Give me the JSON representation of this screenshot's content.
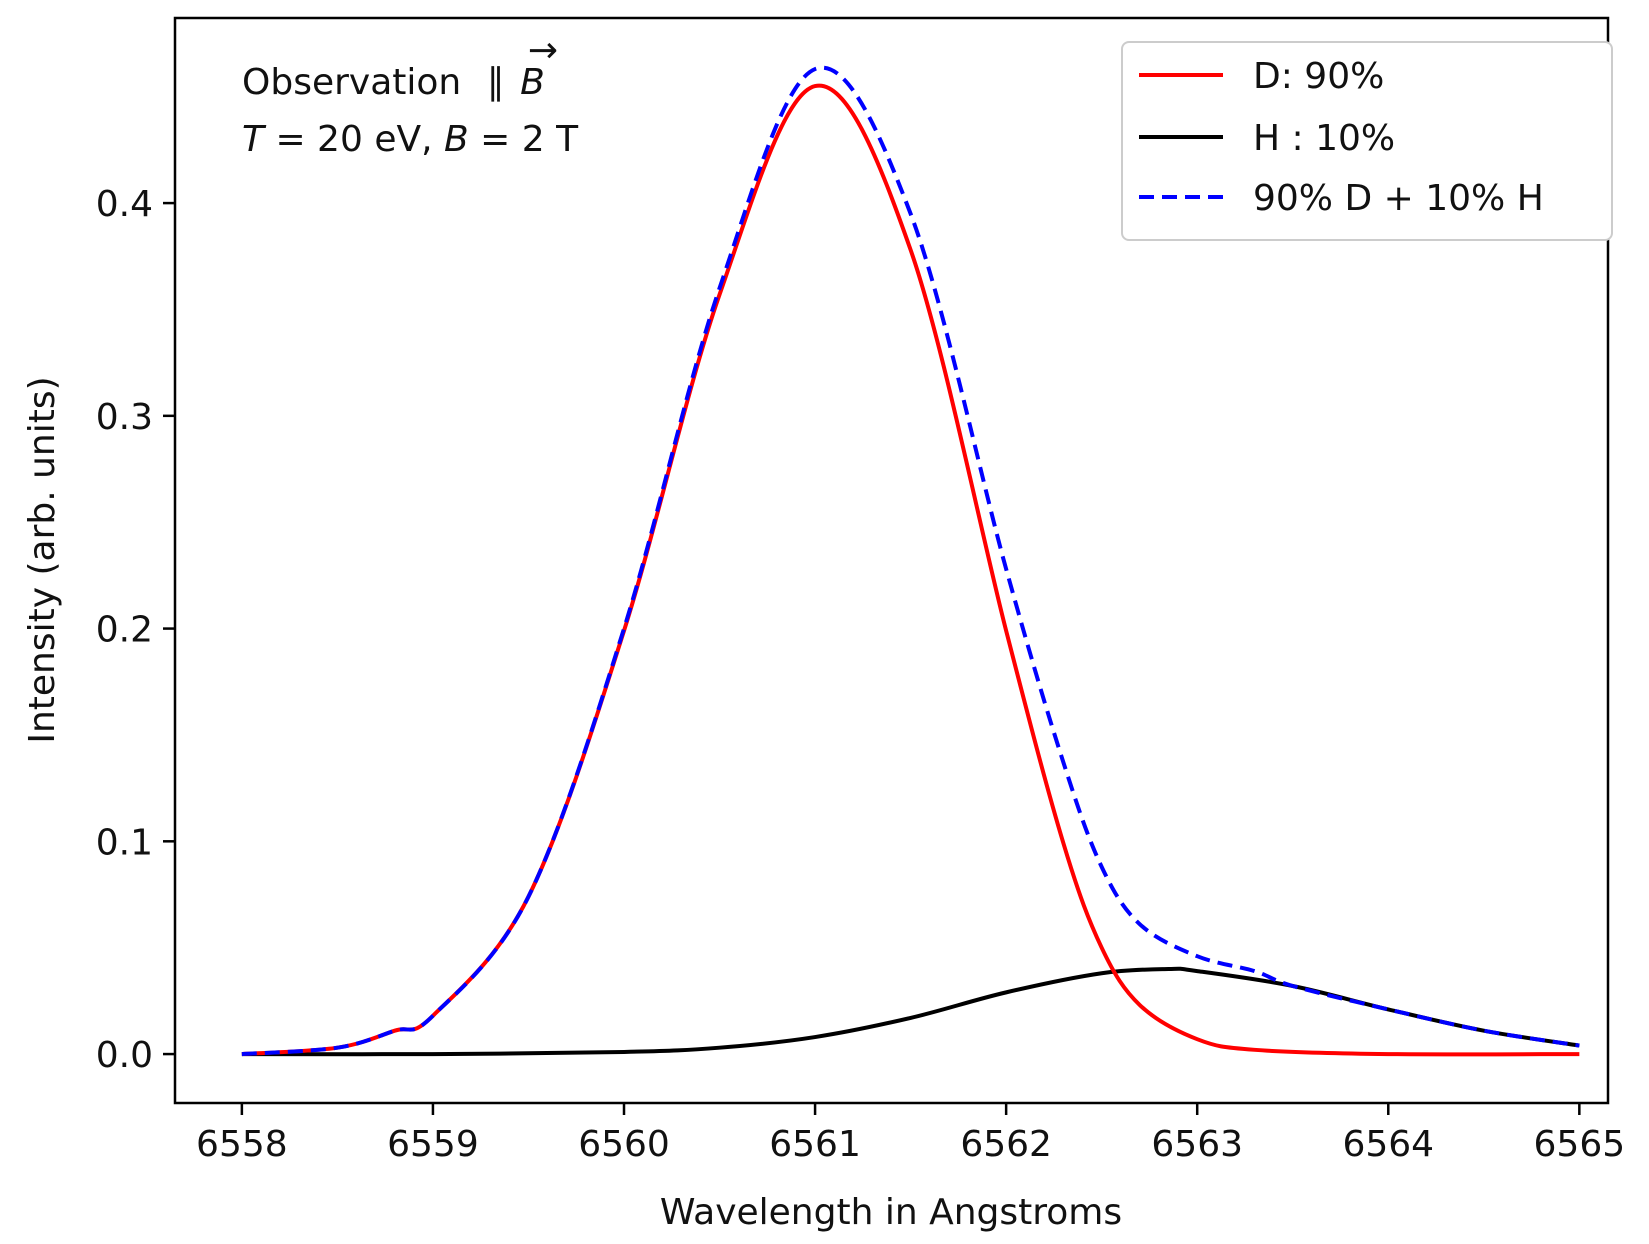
{
  "chart_data": {
    "type": "line",
    "xlabel": "Wavelength in Angstroms",
    "ylabel": "Intensity (arb. units)",
    "xlim": [
      6557.65,
      6565.15
    ],
    "ylim": [
      -0.023,
      0.487
    ],
    "xticks": [
      6558,
      6559,
      6560,
      6561,
      6562,
      6563,
      6564,
      6565
    ],
    "yticks": [
      0.0,
      0.1,
      0.2,
      0.3,
      0.4
    ],
    "xtick_labels": [
      "6558",
      "6559",
      "6560",
      "6561",
      "6562",
      "6563",
      "6564",
      "6565"
    ],
    "ytick_labels": [
      "0.0",
      "0.1",
      "0.2",
      "0.3",
      "0.4"
    ],
    "annotation": {
      "line1_text": "Observation",
      "line1_symbol": "∥",
      "line1_vector": "B",
      "line1_arrow": "→",
      "line2_T": "T",
      "line2_rest": " = 20 eV,  ",
      "line2_B": "B",
      "line2_rest2": " = 2 T"
    },
    "legend": {
      "position": "top-right",
      "entries": [
        {
          "label": "D: 90%",
          "color": "#ff0000",
          "style": "solid"
        },
        {
          "label": "H : 10%",
          "color": "#000000",
          "style": "solid"
        },
        {
          "label": "90% D +  10% H",
          "color": "#0000ff",
          "style": "dashed"
        }
      ]
    },
    "series": [
      {
        "name": "D: 90%",
        "color": "#ff0000",
        "style": "solid",
        "x": [
          6558,
          6558.5,
          6558.8,
          6559,
          6559.5,
          6560,
          6560.5,
          6561,
          6561.5,
          6562,
          6562.3,
          6562.5,
          6562.7,
          6563,
          6563.3,
          6564,
          6565
        ],
        "y": [
          0.0,
          0.003,
          0.011,
          0.018,
          0.074,
          0.199,
          0.357,
          0.455,
          0.378,
          0.199,
          0.099,
          0.05,
          0.023,
          0.007,
          0.002,
          0.0,
          0.0
        ]
      },
      {
        "name": "H : 10%",
        "color": "#000000",
        "style": "solid",
        "x": [
          6558,
          6559,
          6560,
          6560.5,
          6561,
          6561.5,
          6562,
          6562.5,
          6562.85,
          6563,
          6563.5,
          6564,
          6564.5,
          6565
        ],
        "y": [
          0.0,
          0.0,
          0.001,
          0.003,
          0.008,
          0.017,
          0.029,
          0.038,
          0.04,
          0.039,
          0.032,
          0.021,
          0.011,
          0.004
        ]
      },
      {
        "name": "90% D +  10% H",
        "color": "#0000ff",
        "style": "dashed",
        "x": [
          6558,
          6558.5,
          6558.8,
          6559,
          6559.5,
          6560,
          6560.5,
          6561,
          6561.5,
          6562,
          6562.3,
          6562.5,
          6562.7,
          6563,
          6563.3,
          6563.5,
          6564,
          6564.5,
          6565
        ],
        "y": [
          0.0,
          0.003,
          0.011,
          0.018,
          0.074,
          0.2,
          0.36,
          0.463,
          0.395,
          0.228,
          0.137,
          0.088,
          0.061,
          0.046,
          0.039,
          0.032,
          0.021,
          0.011,
          0.004
        ]
      }
    ]
  }
}
